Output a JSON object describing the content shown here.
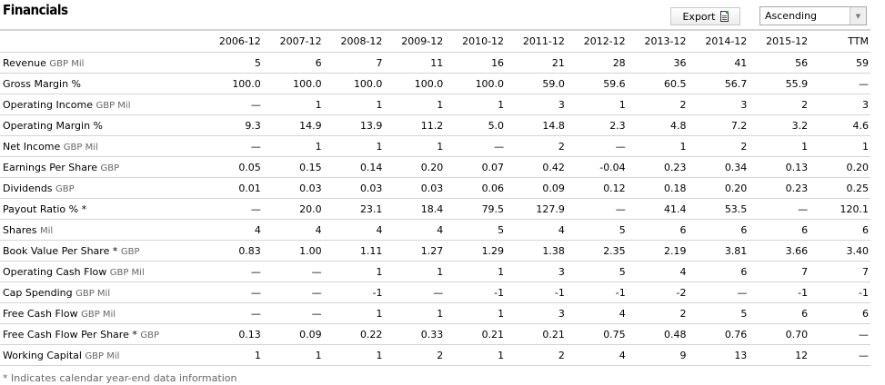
{
  "header": {
    "title": "Financials",
    "export_label": "Export",
    "sort_selected": "Ascending"
  },
  "columns": [
    "2006-12",
    "2007-12",
    "2008-12",
    "2009-12",
    "2010-12",
    "2011-12",
    "2012-12",
    "2013-12",
    "2014-12",
    "2015-12",
    "TTM"
  ],
  "rows": [
    {
      "label": "Revenue",
      "unit": "GBP Mil",
      "values": [
        "5",
        "6",
        "7",
        "11",
        "16",
        "21",
        "28",
        "36",
        "41",
        "56",
        "59"
      ]
    },
    {
      "label": "Gross Margin %",
      "unit": "",
      "values": [
        "100.0",
        "100.0",
        "100.0",
        "100.0",
        "100.0",
        "59.0",
        "59.6",
        "60.5",
        "56.7",
        "55.9",
        "—"
      ]
    },
    {
      "label": "Operating Income",
      "unit": "GBP Mil",
      "values": [
        "—",
        "1",
        "1",
        "1",
        "1",
        "3",
        "1",
        "2",
        "3",
        "2",
        "3"
      ]
    },
    {
      "label": "Operating Margin %",
      "unit": "",
      "values": [
        "9.3",
        "14.9",
        "13.9",
        "11.2",
        "5.0",
        "14.8",
        "2.3",
        "4.8",
        "7.2",
        "3.2",
        "4.6"
      ]
    },
    {
      "label": "Net Income",
      "unit": "GBP Mil",
      "values": [
        "—",
        "1",
        "1",
        "1",
        "—",
        "2",
        "—",
        "1",
        "2",
        "1",
        "1"
      ]
    },
    {
      "label": "Earnings Per Share",
      "unit": "GBP",
      "values": [
        "0.05",
        "0.15",
        "0.14",
        "0.20",
        "0.07",
        "0.42",
        "-0.04",
        "0.23",
        "0.34",
        "0.13",
        "0.20"
      ]
    },
    {
      "label": "Dividends",
      "unit": "GBP",
      "values": [
        "0.01",
        "0.03",
        "0.03",
        "0.03",
        "0.06",
        "0.09",
        "0.12",
        "0.18",
        "0.20",
        "0.23",
        "0.25"
      ]
    },
    {
      "label": "Payout Ratio % *",
      "unit": "",
      "values": [
        "—",
        "20.0",
        "23.1",
        "18.4",
        "79.5",
        "127.9",
        "—",
        "41.4",
        "53.5",
        "—",
        "120.1"
      ]
    },
    {
      "label": "Shares",
      "unit": "Mil",
      "values": [
        "4",
        "4",
        "4",
        "4",
        "5",
        "4",
        "5",
        "6",
        "6",
        "6",
        "6"
      ]
    },
    {
      "label": "Book Value Per Share *",
      "unit": "GBP",
      "values": [
        "0.83",
        "1.00",
        "1.11",
        "1.27",
        "1.29",
        "1.38",
        "2.35",
        "2.19",
        "3.81",
        "3.66",
        "3.40"
      ]
    },
    {
      "label": "Operating Cash Flow",
      "unit": "GBP Mil",
      "values": [
        "—",
        "—",
        "1",
        "1",
        "1",
        "3",
        "5",
        "4",
        "6",
        "7",
        "7"
      ]
    },
    {
      "label": "Cap Spending",
      "unit": "GBP Mil",
      "values": [
        "—",
        "—",
        "-1",
        "—",
        "-1",
        "-1",
        "-1",
        "-2",
        "—",
        "-1",
        "-1"
      ]
    },
    {
      "label": "Free Cash Flow",
      "unit": "GBP Mil",
      "values": [
        "—",
        "—",
        "1",
        "1",
        "1",
        "3",
        "4",
        "2",
        "5",
        "6",
        "6"
      ]
    },
    {
      "label": "Free Cash Flow Per Share *",
      "unit": "GBP",
      "values": [
        "0.13",
        "0.09",
        "0.22",
        "0.33",
        "0.21",
        "0.21",
        "0.75",
        "0.48",
        "0.76",
        "0.70",
        "—"
      ]
    },
    {
      "label": "Working Capital",
      "unit": "GBP Mil",
      "values": [
        "1",
        "1",
        "1",
        "2",
        "1",
        "2",
        "4",
        "9",
        "13",
        "12",
        "—"
      ]
    }
  ],
  "footnote": "* Indicates calendar year-end data information"
}
